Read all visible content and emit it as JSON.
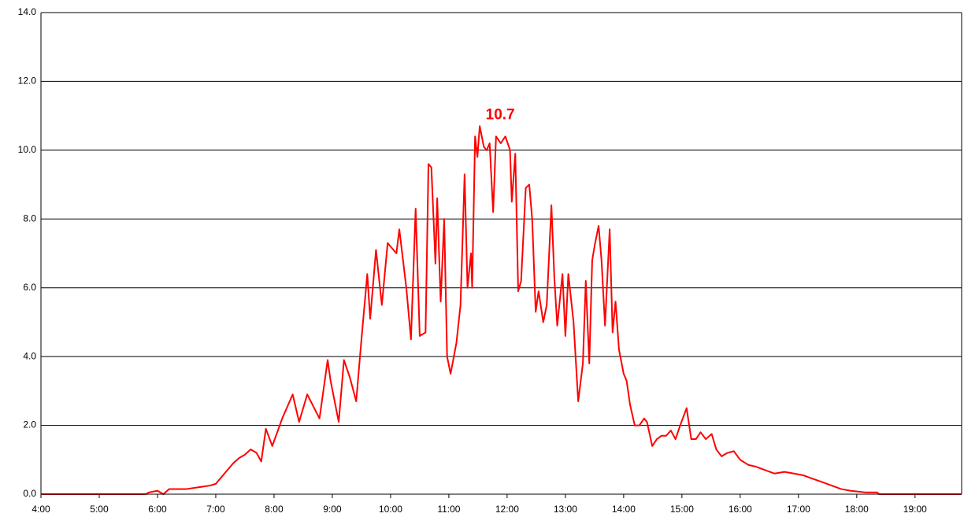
{
  "chart_data": {
    "type": "line",
    "peak_label": "10.7",
    "x": [
      4.0,
      5.8,
      5.85,
      6.0,
      6.1,
      6.2,
      6.5,
      6.7,
      6.9,
      7.0,
      7.1,
      7.2,
      7.3,
      7.4,
      7.5,
      7.6,
      7.7,
      7.78,
      7.86,
      7.97,
      8.14,
      8.32,
      8.43,
      8.57,
      8.78,
      8.92,
      8.97,
      9.11,
      9.2,
      9.3,
      9.41,
      9.5,
      9.6,
      9.65,
      9.75,
      9.85,
      9.95,
      10.1,
      10.15,
      10.27,
      10.35,
      10.43,
      10.5,
      10.6,
      10.65,
      10.7,
      10.77,
      10.8,
      10.86,
      10.92,
      10.97,
      11.03,
      11.13,
      11.2,
      11.27,
      11.32,
      11.38,
      11.4,
      11.45,
      11.49,
      11.53,
      11.6,
      11.65,
      11.7,
      11.76,
      11.81,
      11.89,
      11.97,
      12.05,
      12.08,
      12.14,
      12.19,
      12.24,
      12.32,
      12.38,
      12.43,
      12.49,
      12.54,
      12.62,
      12.68,
      12.76,
      12.81,
      12.86,
      12.95,
      13.0,
      13.05,
      13.14,
      13.22,
      13.3,
      13.35,
      13.41,
      13.46,
      13.51,
      13.57,
      13.62,
      13.68,
      13.76,
      13.81,
      13.86,
      13.92,
      14.0,
      14.05,
      14.11,
      14.19,
      14.27,
      14.35,
      14.4,
      14.49,
      14.57,
      14.65,
      14.73,
      14.81,
      14.89,
      14.97,
      15.08,
      15.16,
      15.24,
      15.32,
      15.41,
      15.51,
      15.59,
      15.68,
      15.78,
      15.89,
      16.0,
      16.14,
      16.27,
      16.43,
      16.59,
      16.76,
      16.92,
      17.08,
      17.24,
      17.41,
      17.57,
      17.73,
      17.89,
      18.16,
      18.35,
      18.38,
      19.8
    ],
    "series": [
      {
        "color": "#ff0000",
        "values": [
          0,
          0,
          0.05,
          0.1,
          0,
          0.15,
          0.15,
          0.2,
          0.25,
          0.3,
          0.5,
          0.7,
          0.9,
          1.05,
          1.15,
          1.3,
          1.2,
          0.95,
          1.9,
          1.4,
          2.2,
          2.9,
          2.1,
          2.9,
          2.2,
          3.9,
          3.3,
          2.1,
          3.9,
          3.4,
          2.7,
          4.5,
          6.4,
          5.1,
          7.1,
          5.5,
          7.3,
          7.0,
          7.7,
          6.0,
          4.5,
          8.3,
          4.6,
          4.7,
          9.6,
          9.5,
          6.7,
          8.6,
          5.6,
          8.0,
          4.0,
          3.5,
          4.4,
          5.5,
          9.3,
          6.0,
          7.0,
          6.0,
          10.4,
          9.8,
          10.7,
          10.1,
          10.0,
          10.2,
          8.2,
          10.4,
          10.2,
          10.4,
          10.0,
          8.5,
          9.9,
          5.9,
          6.2,
          8.9,
          9.0,
          8.0,
          5.3,
          5.9,
          5.0,
          5.5,
          8.4,
          6.3,
          4.9,
          6.4,
          4.6,
          6.4,
          5.0,
          2.7,
          3.8,
          6.2,
          3.8,
          6.8,
          7.3,
          7.8,
          6.8,
          4.9,
          7.7,
          4.7,
          5.6,
          4.2,
          3.5,
          3.3,
          2.6,
          2.0,
          2.0,
          2.2,
          2.1,
          1.4,
          1.6,
          1.7,
          1.7,
          1.85,
          1.6,
          2.0,
          2.5,
          1.6,
          1.6,
          1.8,
          1.6,
          1.75,
          1.3,
          1.1,
          1.2,
          1.25,
          1.0,
          0.85,
          0.8,
          0.7,
          0.6,
          0.65,
          0.6,
          0.55,
          0.45,
          0.35,
          0.25,
          0.15,
          0.1,
          0.05,
          0.05,
          0,
          0
        ]
      }
    ],
    "xlim": [
      4,
      19.8
    ],
    "xticks": [
      {
        "value": 4,
        "label": "4:00"
      },
      {
        "value": 5,
        "label": "5:00"
      },
      {
        "value": 6,
        "label": "6:00"
      },
      {
        "value": 7,
        "label": "7:00"
      },
      {
        "value": 8,
        "label": "8:00"
      },
      {
        "value": 9,
        "label": "9:00"
      },
      {
        "value": 10,
        "label": "10:00"
      },
      {
        "value": 11,
        "label": "11:00"
      },
      {
        "value": 12,
        "label": "12:00"
      },
      {
        "value": 13,
        "label": "13:00"
      },
      {
        "value": 14,
        "label": "14:00"
      },
      {
        "value": 15,
        "label": "15:00"
      },
      {
        "value": 16,
        "label": "16:00"
      },
      {
        "value": 17,
        "label": "17:00"
      },
      {
        "value": 18,
        "label": "18:00"
      },
      {
        "value": 19,
        "label": "19:00"
      }
    ],
    "ylim": [
      0,
      14
    ],
    "yticks": [
      {
        "value": 0,
        "label": "0.0"
      },
      {
        "value": 2,
        "label": "2.0"
      },
      {
        "value": 4,
        "label": "4.0"
      },
      {
        "value": 6,
        "label": "6.0"
      },
      {
        "value": 8,
        "label": "8.0"
      },
      {
        "value": 10,
        "label": "10.0"
      },
      {
        "value": 12,
        "label": "12.0"
      },
      {
        "value": 14,
        "label": "14.0"
      }
    ],
    "grid": true
  }
}
